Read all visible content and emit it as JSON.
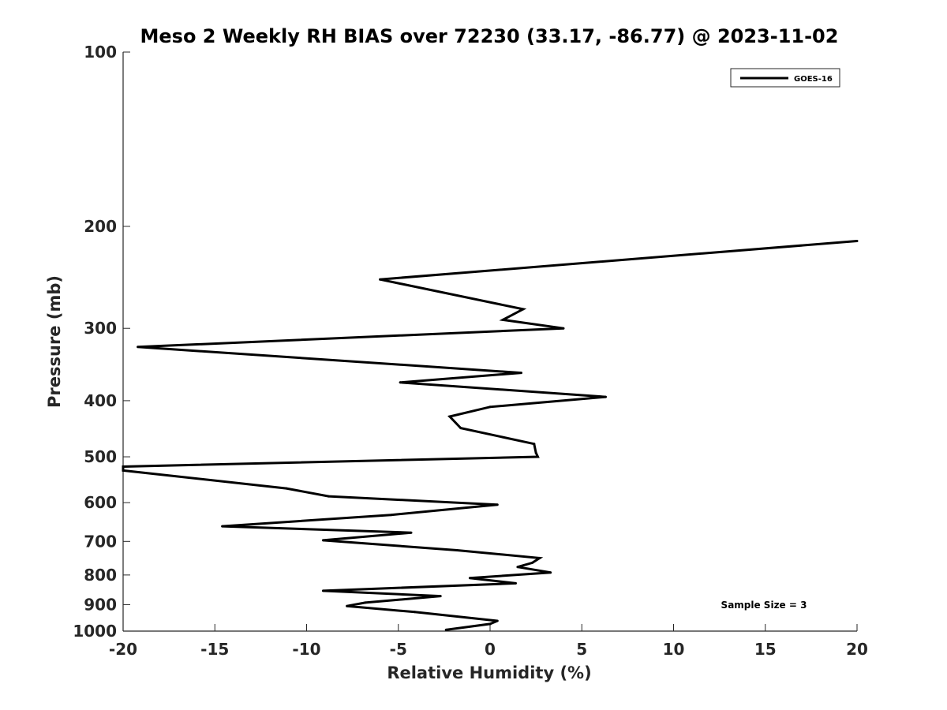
{
  "chart_data": {
    "type": "line",
    "title": "Meso 2 Weekly RH BIAS over 72230 (33.17, -86.77) @ 2023-11-02",
    "xlabel": "Relative Humidity (%)",
    "ylabel": "Pressure (mb)",
    "xlim": [
      -20,
      20
    ],
    "ylim": [
      100,
      1000
    ],
    "y_scale": "log",
    "y_reversed": true,
    "grid": false,
    "x_ticks": [
      -20,
      -15,
      -10,
      -5,
      0,
      5,
      10,
      15,
      20
    ],
    "x_tick_labels": [
      "-20",
      "-15",
      "-10",
      "-5",
      "0",
      "5",
      "10",
      "15",
      "20"
    ],
    "y_ticks": [
      100,
      200,
      300,
      400,
      500,
      600,
      700,
      800,
      900,
      1000
    ],
    "y_tick_labels": [
      "100",
      "200",
      "300",
      "400",
      "500",
      "600",
      "700",
      "800",
      "900",
      "1000"
    ],
    "legend_position": "top-right",
    "series": [
      {
        "name": "GOES-16",
        "color": "#000000",
        "points": [
          [
            20.0,
            212
          ],
          [
            -6.0,
            247
          ],
          [
            1.8,
            278
          ],
          [
            0.7,
            290
          ],
          [
            4.0,
            300
          ],
          [
            -19.2,
            323
          ],
          [
            1.7,
            358
          ],
          [
            -4.9,
            372
          ],
          [
            6.3,
            394
          ],
          [
            0.0,
            410
          ],
          [
            -2.2,
            426
          ],
          [
            -1.6,
            446
          ],
          [
            2.4,
            475
          ],
          [
            2.5,
            492
          ],
          [
            2.6,
            500
          ],
          [
            -20.0,
            520
          ],
          [
            -20.0,
            528
          ],
          [
            -11.1,
            567
          ],
          [
            -8.8,
            585
          ],
          [
            0.4,
            605
          ],
          [
            -5.4,
            630
          ],
          [
            -14.6,
            659
          ],
          [
            -4.3,
            676
          ],
          [
            -9.1,
            697
          ],
          [
            -1.8,
            725
          ],
          [
            2.7,
            748
          ],
          [
            2.3,
            762
          ],
          [
            1.5,
            775
          ],
          [
            3.3,
            792
          ],
          [
            -1.1,
            810
          ],
          [
            1.4,
            827
          ],
          [
            -9.1,
            852
          ],
          [
            -2.7,
            870
          ],
          [
            -6.8,
            893
          ],
          [
            -7.8,
            905
          ],
          [
            -4.1,
            927
          ],
          [
            0.4,
            960
          ],
          [
            0.0,
            972
          ],
          [
            -2.4,
            995
          ]
        ]
      }
    ],
    "annotations": [
      {
        "text": "Sample Size = 3",
        "position": "bottom-right"
      }
    ]
  }
}
